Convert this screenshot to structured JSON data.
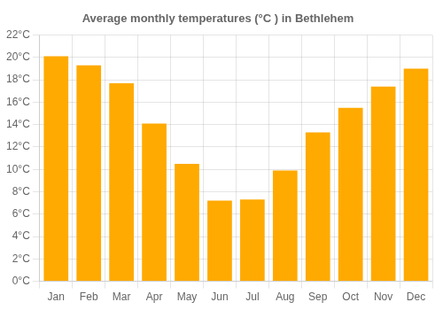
{
  "chart_data": {
    "type": "bar",
    "title": "Average monthly temperatures (°C ) in Bethlehem",
    "categories": [
      "Jan",
      "Feb",
      "Mar",
      "Apr",
      "May",
      "Jun",
      "Jul",
      "Aug",
      "Sep",
      "Oct",
      "Nov",
      "Dec"
    ],
    "values": [
      20.1,
      19.3,
      17.7,
      14.1,
      10.5,
      7.2,
      7.3,
      9.9,
      13.3,
      15.5,
      17.4,
      19.0
    ],
    "color": "#FFAA00",
    "ylim": [
      0,
      22
    ],
    "yticks": [
      {
        "value": 0,
        "label": "0°C"
      },
      {
        "value": 2,
        "label": "2°C"
      },
      {
        "value": 4,
        "label": "4°C"
      },
      {
        "value": 6,
        "label": "6°C"
      },
      {
        "value": 8,
        "label": "8°C"
      },
      {
        "value": 10,
        "label": "10°C"
      },
      {
        "value": 12,
        "label": "12°C"
      },
      {
        "value": 14,
        "label": "14°C"
      },
      {
        "value": 16,
        "label": "16°C"
      },
      {
        "value": 18,
        "label": "18°C"
      },
      {
        "value": 20,
        "label": "20°C"
      },
      {
        "value": 22,
        "label": "22°C"
      }
    ],
    "grid": true
  }
}
